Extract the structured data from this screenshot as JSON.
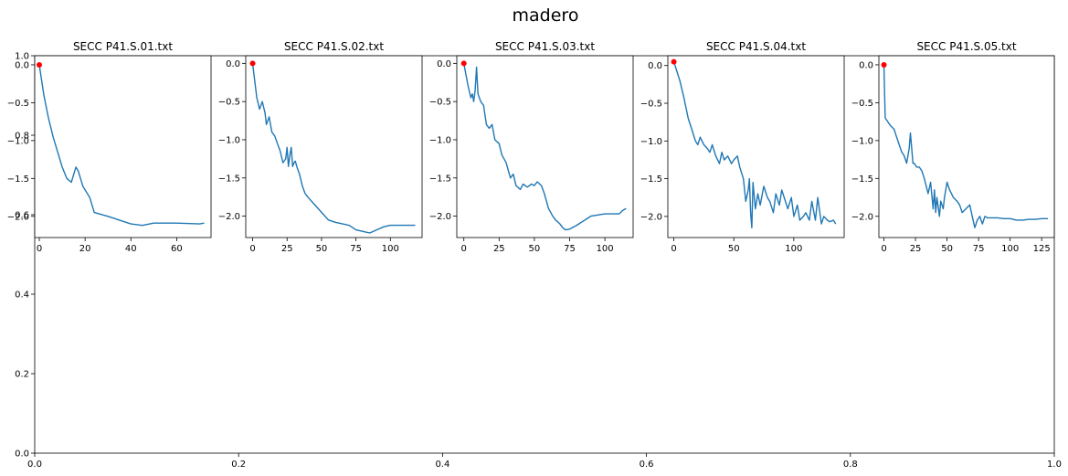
{
  "figure": {
    "title": "madero",
    "line_color": "#1f77b4",
    "marker_color": "#ff0000"
  },
  "chart_data": [
    {
      "type": "line",
      "role": "background-axes",
      "title": "",
      "xlim": [
        0,
        1
      ],
      "ylim": [
        0,
        1
      ],
      "xticks": [
        0.0,
        0.2,
        0.4,
        0.6,
        0.8,
        1.0
      ],
      "xtick_labels": [
        "0.0",
        "0.2",
        "0.4",
        "0.6",
        "0.8",
        "1.0"
      ],
      "yticks": [
        0.0,
        0.2,
        0.4,
        0.6,
        0.8,
        1.0
      ],
      "ytick_labels": [
        "0.0",
        "0.2",
        "0.4",
        "0.6",
        "0.8",
        "1.0"
      ],
      "series": []
    },
    {
      "type": "line",
      "title": "SECC P41.S.01.txt",
      "xlim": [
        -2,
        75
      ],
      "ylim": [
        -2.28,
        0.12
      ],
      "xticks": [
        0,
        20,
        40,
        60
      ],
      "xtick_labels": [
        "0",
        "20",
        "40",
        "60"
      ],
      "yticks": [
        0.0,
        -0.5,
        -1.0,
        -1.5,
        -2.0
      ],
      "ytick_labels": [
        "0.0",
        "−0.5",
        "−1.0",
        "−1.5",
        "−2.0"
      ],
      "series": [
        {
          "x": [
            0,
            2,
            4,
            6,
            8,
            10,
            12,
            14,
            15,
            16,
            17,
            18,
            19,
            20,
            22,
            24,
            30,
            40,
            45,
            50,
            60,
            70,
            72
          ],
          "y": [
            0.0,
            -0.4,
            -0.7,
            -0.95,
            -1.15,
            -1.35,
            -1.5,
            -1.55,
            -1.45,
            -1.35,
            -1.4,
            -1.5,
            -1.6,
            -1.65,
            -1.75,
            -1.95,
            -2.0,
            -2.1,
            -2.12,
            -2.09,
            -2.09,
            -2.1,
            -2.09
          ]
        }
      ],
      "start_marker": {
        "x": 0,
        "y": 0.0
      }
    },
    {
      "type": "line",
      "title": "SECC P41.S.02.txt",
      "xlim": [
        -5,
        123
      ],
      "ylim": [
        -2.28,
        0.1
      ],
      "xticks": [
        0,
        25,
        50,
        75,
        100
      ],
      "xtick_labels": [
        "0",
        "25",
        "50",
        "75",
        "100"
      ],
      "yticks": [
        0.0,
        -0.5,
        -1.0,
        -1.5,
        -2.0
      ],
      "ytick_labels": [
        "0.0",
        "−0.5",
        "−1.0",
        "−1.5",
        "−2.0"
      ],
      "series": [
        {
          "x": [
            0,
            3,
            5,
            7,
            9,
            10,
            12,
            14,
            16,
            18,
            20,
            22,
            24,
            25,
            26,
            27,
            28,
            29,
            30,
            31,
            32,
            34,
            36,
            38,
            40,
            45,
            50,
            55,
            60,
            65,
            70,
            75,
            80,
            85,
            90,
            95,
            100,
            110,
            118
          ],
          "y": [
            0.0,
            -0.45,
            -0.6,
            -0.5,
            -0.65,
            -0.8,
            -0.7,
            -0.9,
            -0.95,
            -1.05,
            -1.15,
            -1.3,
            -1.25,
            -1.1,
            -1.35,
            -1.2,
            -1.1,
            -1.35,
            -1.3,
            -1.28,
            -1.35,
            -1.45,
            -1.6,
            -1.7,
            -1.75,
            -1.85,
            -1.95,
            -2.05,
            -2.08,
            -2.1,
            -2.12,
            -2.18,
            -2.2,
            -2.22,
            -2.18,
            -2.14,
            -2.12,
            -2.12,
            -2.12
          ]
        }
      ],
      "start_marker": {
        "x": 0,
        "y": 0.0
      }
    },
    {
      "type": "line",
      "title": "SECC P41.S.03.txt",
      "xlim": [
        -5,
        120
      ],
      "ylim": [
        -2.28,
        0.1
      ],
      "xticks": [
        0,
        25,
        50,
        75,
        100
      ],
      "xtick_labels": [
        "0",
        "25",
        "50",
        "75",
        "100"
      ],
      "yticks": [
        0.0,
        -0.5,
        -1.0,
        -1.5,
        -2.0
      ],
      "ytick_labels": [
        "0.0",
        "−0.5",
        "−1.0",
        "−1.5",
        "−2.0"
      ],
      "series": [
        {
          "x": [
            0,
            3,
            5,
            6,
            7,
            8,
            9,
            10,
            11,
            12,
            14,
            16,
            18,
            20,
            22,
            25,
            27,
            30,
            33,
            35,
            37,
            40,
            42,
            45,
            48,
            50,
            52,
            55,
            57,
            60,
            63,
            65,
            68,
            70,
            72,
            75,
            80,
            90,
            100,
            110,
            113,
            115
          ],
          "y": [
            0.0,
            -0.3,
            -0.45,
            -0.4,
            -0.5,
            -0.35,
            -0.05,
            -0.4,
            -0.45,
            -0.5,
            -0.55,
            -0.8,
            -0.85,
            -0.8,
            -1.0,
            -1.05,
            -1.2,
            -1.3,
            -1.5,
            -1.45,
            -1.6,
            -1.65,
            -1.58,
            -1.62,
            -1.58,
            -1.6,
            -1.55,
            -1.6,
            -1.7,
            -1.9,
            -2.0,
            -2.05,
            -2.1,
            -2.15,
            -2.18,
            -2.17,
            -2.12,
            -2.0,
            -1.97,
            -1.97,
            -1.92,
            -1.9
          ]
        }
      ],
      "start_marker": {
        "x": 0,
        "y": 0.0
      }
    },
    {
      "type": "line",
      "title": "SECC P41.S.04.txt",
      "xlim": [
        -5,
        142
      ],
      "ylim": [
        -2.28,
        0.13
      ],
      "xticks": [
        0,
        50,
        100
      ],
      "xtick_labels": [
        "0",
        "50",
        "100"
      ],
      "yticks": [
        0.0,
        -0.5,
        -1.0,
        -1.5,
        -2.0
      ],
      "ytick_labels": [
        "0.0",
        "−0.5",
        "−1.0",
        "−1.5",
        "−2.0"
      ],
      "series": [
        {
          "x": [
            0,
            3,
            5,
            8,
            10,
            12,
            15,
            18,
            20,
            22,
            25,
            28,
            30,
            32,
            35,
            38,
            40,
            42,
            45,
            48,
            50,
            53,
            55,
            58,
            60,
            62,
            63,
            64,
            65,
            66,
            68,
            70,
            72,
            75,
            78,
            80,
            83,
            85,
            88,
            90,
            93,
            95,
            98,
            100,
            103,
            105,
            108,
            110,
            113,
            115,
            118,
            120,
            123,
            125,
            128,
            130,
            133,
            135
          ],
          "y": [
            0.05,
            -0.1,
            -0.2,
            -0.4,
            -0.55,
            -0.7,
            -0.85,
            -1.0,
            -1.05,
            -0.95,
            -1.05,
            -1.1,
            -1.15,
            -1.05,
            -1.2,
            -1.3,
            -1.15,
            -1.25,
            -1.2,
            -1.3,
            -1.25,
            -1.2,
            -1.35,
            -1.5,
            -1.8,
            -1.65,
            -1.5,
            -1.95,
            -2.15,
            -1.55,
            -1.9,
            -1.7,
            -1.85,
            -1.6,
            -1.75,
            -1.8,
            -1.95,
            -1.7,
            -1.85,
            -1.65,
            -1.8,
            -1.9,
            -1.75,
            -2.0,
            -1.85,
            -2.05,
            -2.0,
            -1.95,
            -2.05,
            -1.8,
            -2.05,
            -1.75,
            -2.1,
            -2.0,
            -2.05,
            -2.07,
            -2.05,
            -2.1
          ]
        }
      ],
      "start_marker": {
        "x": 0,
        "y": 0.05
      }
    },
    {
      "type": "line",
      "title": "SECC P41.S.05.txt",
      "xlim": [
        -4,
        135
      ],
      "ylim": [
        -2.28,
        0.12
      ],
      "xticks": [
        0,
        25,
        50,
        75,
        100,
        125
      ],
      "xtick_labels": [
        "0",
        "25",
        "50",
        "75",
        "100",
        "125"
      ],
      "yticks": [
        0.0,
        -0.5,
        -1.0,
        -1.5,
        -2.0
      ],
      "ytick_labels": [
        "0.0",
        "−0.5",
        "−1.0",
        "−1.5",
        "−2.0"
      ],
      "series": [
        {
          "x": [
            0,
            1,
            3,
            5,
            8,
            10,
            12,
            14,
            16,
            18,
            20,
            21,
            22,
            23,
            24,
            26,
            28,
            30,
            32,
            35,
            37,
            39,
            40,
            41,
            42,
            44,
            45,
            47,
            48,
            50,
            52,
            55,
            58,
            60,
            62,
            65,
            68,
            70,
            72,
            74,
            76,
            78,
            80,
            82,
            85,
            90,
            95,
            100,
            105,
            110,
            115,
            120,
            125,
            130
          ],
          "y": [
            0.0,
            -0.7,
            -0.75,
            -0.8,
            -0.85,
            -0.95,
            -1.05,
            -1.15,
            -1.2,
            -1.3,
            -1.1,
            -0.9,
            -1.1,
            -1.3,
            -1.3,
            -1.35,
            -1.35,
            -1.4,
            -1.5,
            -1.7,
            -1.55,
            -1.9,
            -1.65,
            -1.95,
            -1.75,
            -2.0,
            -1.8,
            -1.9,
            -1.75,
            -1.55,
            -1.65,
            -1.75,
            -1.8,
            -1.85,
            -1.95,
            -1.9,
            -1.85,
            -2.0,
            -2.15,
            -2.05,
            -2.0,
            -2.1,
            -2.0,
            -2.02,
            -2.02,
            -2.02,
            -2.03,
            -2.03,
            -2.05,
            -2.05,
            -2.04,
            -2.04,
            -2.03,
            -2.03
          ]
        }
      ],
      "start_marker": {
        "x": 0,
        "y": 0.0
      }
    }
  ]
}
